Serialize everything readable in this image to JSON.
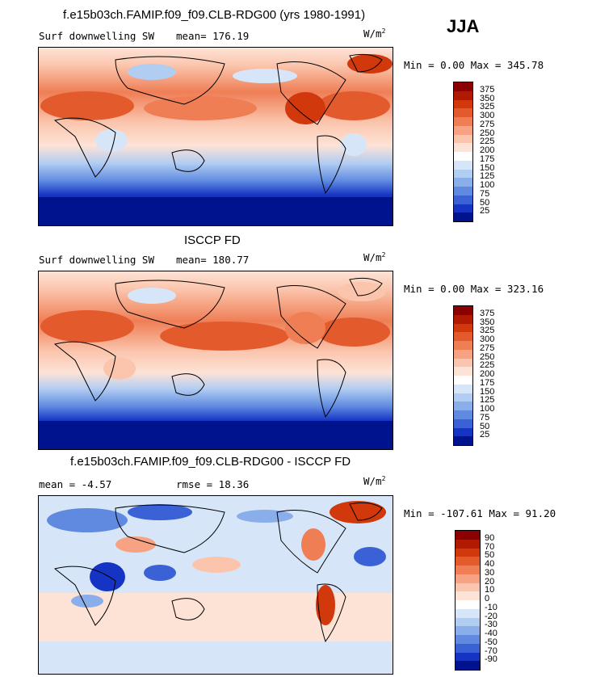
{
  "season": "JJA",
  "units_base": "W/m",
  "units_exp": "2",
  "panels": [
    {
      "title": "f.e15b03ch.FAMIP.f09_f09.CLB-RDG00 (yrs 1980-1991)",
      "left_label": "Surf downwelling SW",
      "stat_text": "mean= 176.19",
      "minmax": "Min =   0.00 Max = 345.78",
      "colorbar": {
        "labels": [
          "375",
          "350",
          "325",
          "300",
          "275",
          "250",
          "225",
          "200",
          "175",
          "150",
          "125",
          "100",
          "75",
          "50",
          "25"
        ],
        "colors": [
          "#8b0000",
          "#b01a00",
          "#d1380c",
          "#e35a2c",
          "#ef7e55",
          "#f6a283",
          "#fbc5ad",
          "#fde3d6",
          "#ffffff",
          "#d6e6f8",
          "#b2cdf2",
          "#8aaeea",
          "#5f8ae0",
          "#3a62d6",
          "#1634c4",
          "#00138f"
        ]
      }
    },
    {
      "title": "ISCCP FD",
      "left_label": "Surf downwelling SW",
      "stat_text": "mean= 180.77",
      "minmax": "Min =   0.00 Max = 323.16",
      "colorbar": {
        "labels": [
          "375",
          "350",
          "325",
          "300",
          "275",
          "250",
          "225",
          "200",
          "175",
          "150",
          "125",
          "100",
          "75",
          "50",
          "25"
        ],
        "colors": [
          "#8b0000",
          "#b01a00",
          "#d1380c",
          "#e35a2c",
          "#ef7e55",
          "#f6a283",
          "#fbc5ad",
          "#fde3d6",
          "#ffffff",
          "#d6e6f8",
          "#b2cdf2",
          "#8aaeea",
          "#5f8ae0",
          "#3a62d6",
          "#1634c4",
          "#00138f"
        ]
      }
    },
    {
      "title": "f.e15b03ch.FAMIP.f09_f09.CLB-RDG00 - ISCCP FD",
      "left_label": "mean =  -4.57",
      "stat_text": "rmse =  18.36",
      "minmax": "Min = -107.61 Max =  91.20",
      "colorbar": {
        "labels": [
          "90",
          "70",
          "50",
          "40",
          "30",
          "20",
          "10",
          "0",
          "-10",
          "-20",
          "-30",
          "-40",
          "-50",
          "-70",
          "-90"
        ],
        "colors": [
          "#8b0000",
          "#b01a00",
          "#d1380c",
          "#e35a2c",
          "#ef7e55",
          "#f6a283",
          "#fbc5ad",
          "#fde3d6",
          "#ffffff",
          "#d6e6f8",
          "#b2cdf2",
          "#8aaeea",
          "#5f8ae0",
          "#3a62d6",
          "#1634c4",
          "#00138f"
        ]
      }
    }
  ]
}
